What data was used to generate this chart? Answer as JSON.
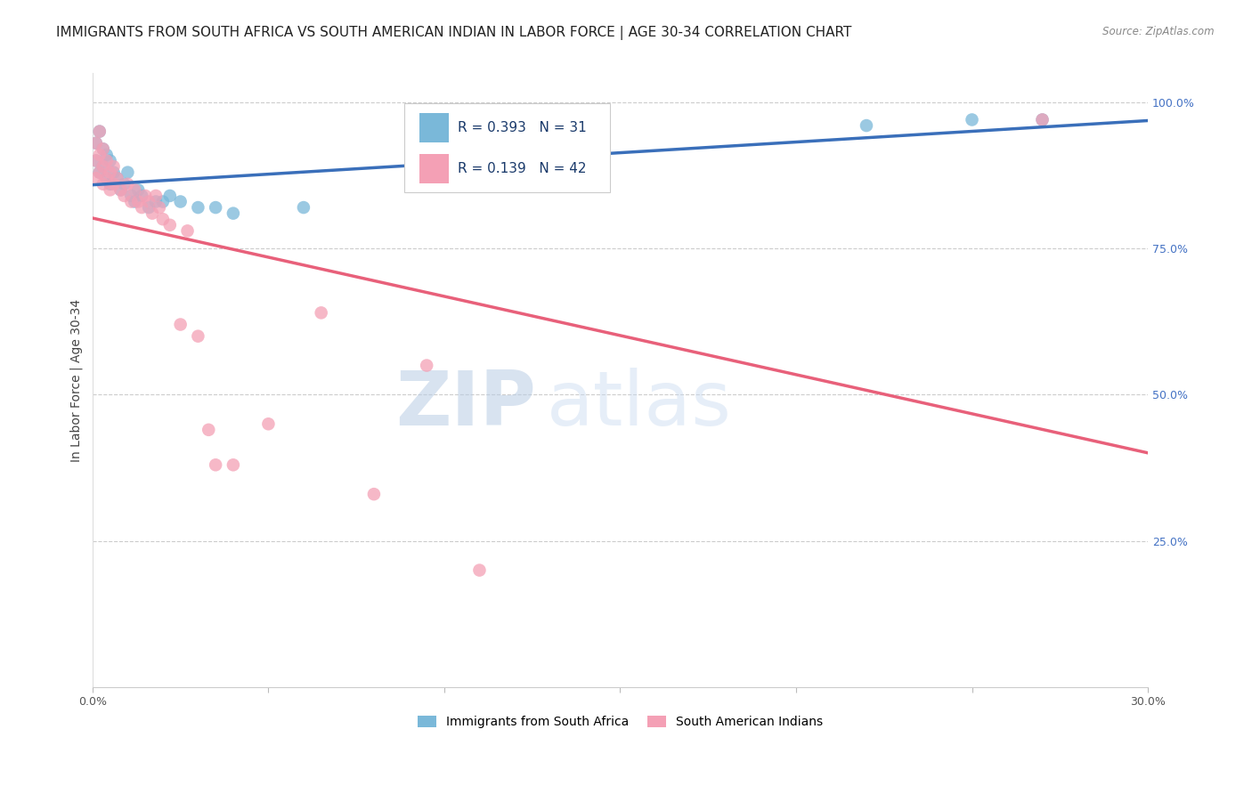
{
  "title": "IMMIGRANTS FROM SOUTH AFRICA VS SOUTH AMERICAN INDIAN IN LABOR FORCE | AGE 30-34 CORRELATION CHART",
  "source": "Source: ZipAtlas.com",
  "ylabel": "In Labor Force | Age 30-34",
  "xlim": [
    0.0,
    0.3
  ],
  "ylim": [
    0.0,
    1.05
  ],
  "xticks": [
    0.0,
    0.05,
    0.1,
    0.15,
    0.2,
    0.25,
    0.3
  ],
  "xticklabels": [
    "0.0%",
    "",
    "",
    "",
    "",
    "",
    "30.0%"
  ],
  "yticks_right": [
    0.0,
    0.25,
    0.5,
    0.75,
    1.0
  ],
  "ytick_right_labels": [
    "",
    "25.0%",
    "50.0%",
    "75.0%",
    "100.0%"
  ],
  "blue_color": "#7ab8d9",
  "pink_color": "#f4a0b5",
  "blue_line_color": "#3a6fba",
  "pink_line_color": "#e8607a",
  "blue_r": 0.393,
  "blue_n": 31,
  "pink_r": 0.139,
  "pink_n": 42,
  "blue_scatter_x": [
    0.001,
    0.001,
    0.002,
    0.002,
    0.003,
    0.003,
    0.004,
    0.004,
    0.005,
    0.005,
    0.006,
    0.007,
    0.008,
    0.009,
    0.01,
    0.011,
    0.012,
    0.013,
    0.014,
    0.016,
    0.018,
    0.02,
    0.022,
    0.025,
    0.03,
    0.035,
    0.04,
    0.06,
    0.22,
    0.25,
    0.27
  ],
  "blue_scatter_y": [
    0.93,
    0.9,
    0.95,
    0.88,
    0.92,
    0.89,
    0.91,
    0.87,
    0.9,
    0.86,
    0.88,
    0.87,
    0.85,
    0.86,
    0.88,
    0.84,
    0.83,
    0.85,
    0.84,
    0.82,
    0.83,
    0.83,
    0.84,
    0.83,
    0.82,
    0.82,
    0.81,
    0.82,
    0.96,
    0.97,
    0.97
  ],
  "pink_scatter_x": [
    0.001,
    0.001,
    0.001,
    0.002,
    0.002,
    0.002,
    0.003,
    0.003,
    0.003,
    0.004,
    0.004,
    0.005,
    0.005,
    0.006,
    0.006,
    0.007,
    0.008,
    0.009,
    0.01,
    0.011,
    0.012,
    0.013,
    0.014,
    0.015,
    0.016,
    0.017,
    0.018,
    0.019,
    0.02,
    0.022,
    0.025,
    0.027,
    0.03,
    0.033,
    0.035,
    0.04,
    0.05,
    0.065,
    0.08,
    0.095,
    0.11,
    0.27
  ],
  "pink_scatter_y": [
    0.93,
    0.9,
    0.87,
    0.95,
    0.91,
    0.88,
    0.92,
    0.89,
    0.86,
    0.9,
    0.87,
    0.88,
    0.85,
    0.89,
    0.86,
    0.87,
    0.85,
    0.84,
    0.86,
    0.83,
    0.85,
    0.83,
    0.82,
    0.84,
    0.83,
    0.81,
    0.84,
    0.82,
    0.8,
    0.79,
    0.62,
    0.78,
    0.6,
    0.44,
    0.38,
    0.38,
    0.45,
    0.64,
    0.33,
    0.55,
    0.2,
    0.97
  ],
  "watermark_zip": "ZIP",
  "watermark_atlas": "atlas",
  "background_color": "#ffffff",
  "grid_color": "#cccccc",
  "ytick_label_color": "#4472c4",
  "title_color": "#222222",
  "title_fontsize": 11.0,
  "axis_label_fontsize": 10,
  "tick_fontsize": 9,
  "legend_fontsize": 11
}
